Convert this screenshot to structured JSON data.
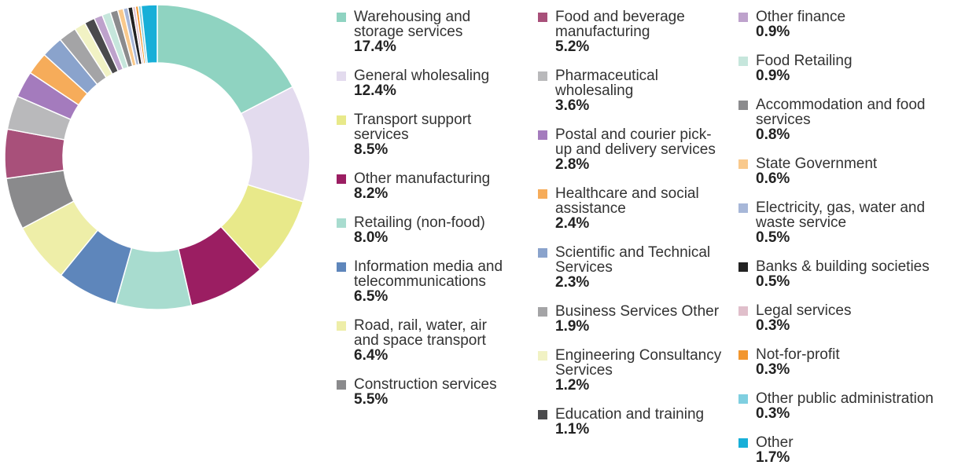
{
  "chart_data": {
    "type": "donut",
    "categories": [
      "Warehousing and storage services",
      "General wholesaling",
      "Transport support services",
      "Other manufacturing",
      "Retailing (non-food)",
      "Information media and telecommunications",
      "Road, rail, water, air and space transport",
      "Construction services",
      "Food and beverage manufacturing",
      "Pharmaceutical wholesaling",
      "Postal and courier pick-up and delivery services",
      "Healthcare and social assistance",
      "Scientific and Technical Services",
      "Business Services Other",
      "Engineering Consultancy Services",
      "Education and training",
      "Other finance",
      "Food Retailing",
      "Accommodation and food services",
      "State Government",
      "Electricity, gas, water and waste service",
      "Banks & building societies",
      "Legal services",
      "Not-for-profit",
      "Other public administration",
      "Other"
    ],
    "values": [
      17.4,
      12.4,
      8.5,
      8.2,
      8.0,
      6.5,
      6.4,
      5.5,
      5.2,
      3.6,
      2.8,
      2.4,
      2.3,
      1.9,
      1.2,
      1.1,
      0.9,
      0.9,
      0.8,
      0.6,
      0.5,
      0.5,
      0.3,
      0.3,
      0.3,
      1.7
    ],
    "value_labels": [
      "17.4%",
      "12.4%",
      "8.5%",
      "8.2%",
      "8.0%",
      "6.5%",
      "6.4%",
      "5.5%",
      "5.2%",
      "3.6%",
      "2.8%",
      "2.4%",
      "2.3%",
      "1.9%",
      "1.2%",
      "1.1%",
      "0.9%",
      "0.9%",
      "0.8%",
      "0.6%",
      "0.5%",
      "0.5%",
      "0.3%",
      "0.3%",
      "0.3%",
      "1.7%"
    ],
    "colors": [
      "#8fd3c1",
      "#e3dbee",
      "#e8e98a",
      "#9b1e62",
      "#a8dccf",
      "#5e86bb",
      "#eeeea8",
      "#8a8a8c",
      "#a8507a",
      "#b9b9bb",
      "#a47bbd",
      "#f6ac5a",
      "#8aa3cc",
      "#a4a4a6",
      "#f1f2c4",
      "#4a4a4c",
      "#bea2cc",
      "#c6e6dc",
      "#8b8b8d",
      "#f9c98c",
      "#a7b7d8",
      "#222222",
      "#e0bfcb",
      "#f2962f",
      "#7fcfe0",
      "#18afd8"
    ]
  }
}
